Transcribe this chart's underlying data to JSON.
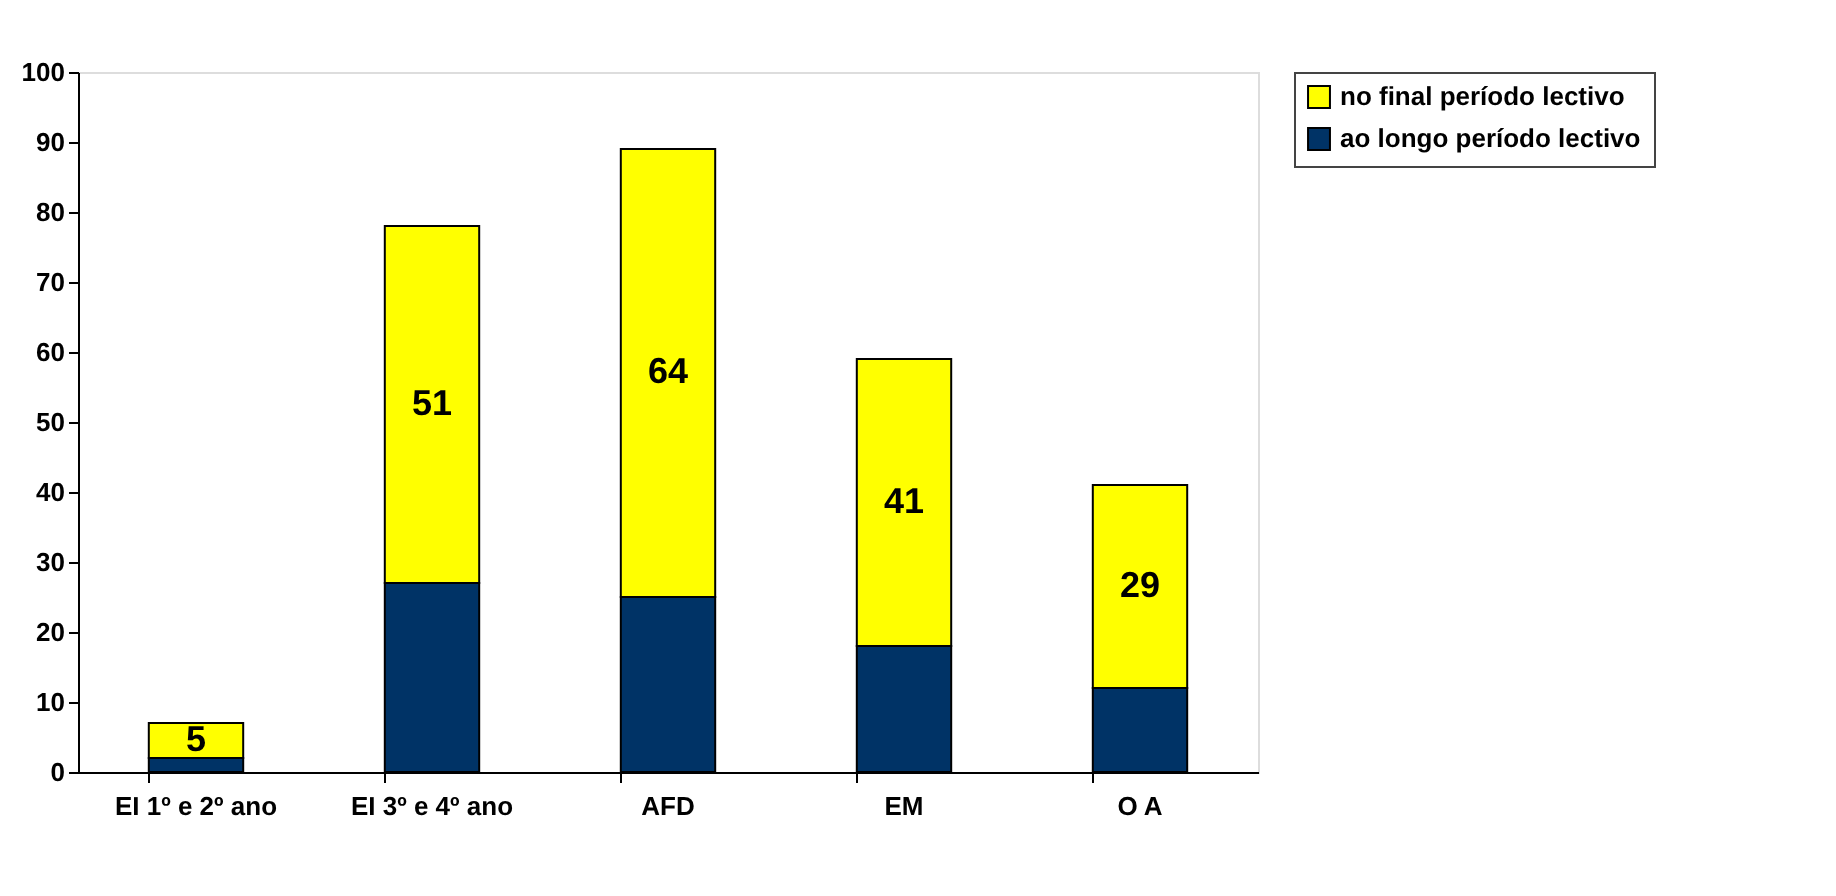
{
  "chart_data": {
    "type": "bar",
    "stacked": true,
    "categories": [
      "EI 1º e 2º ano",
      "EI 3º e 4º ano",
      "AFD",
      "EM",
      "O A"
    ],
    "series": [
      {
        "name": "ao longo período lectivo",
        "color": "#003366",
        "values": [
          2,
          27,
          25,
          18,
          12
        ]
      },
      {
        "name": "no final período lectivo",
        "color": "#ffff00",
        "values": [
          5,
          51,
          64,
          41,
          29
        ],
        "value_labels": [
          "5",
          "51",
          "64",
          "41",
          "29"
        ]
      }
    ],
    "ylim": [
      0,
      100
    ],
    "yticks": [
      0,
      10,
      20,
      30,
      40,
      50,
      60,
      70,
      80,
      90,
      100
    ],
    "grid": false,
    "legend": "right"
  }
}
